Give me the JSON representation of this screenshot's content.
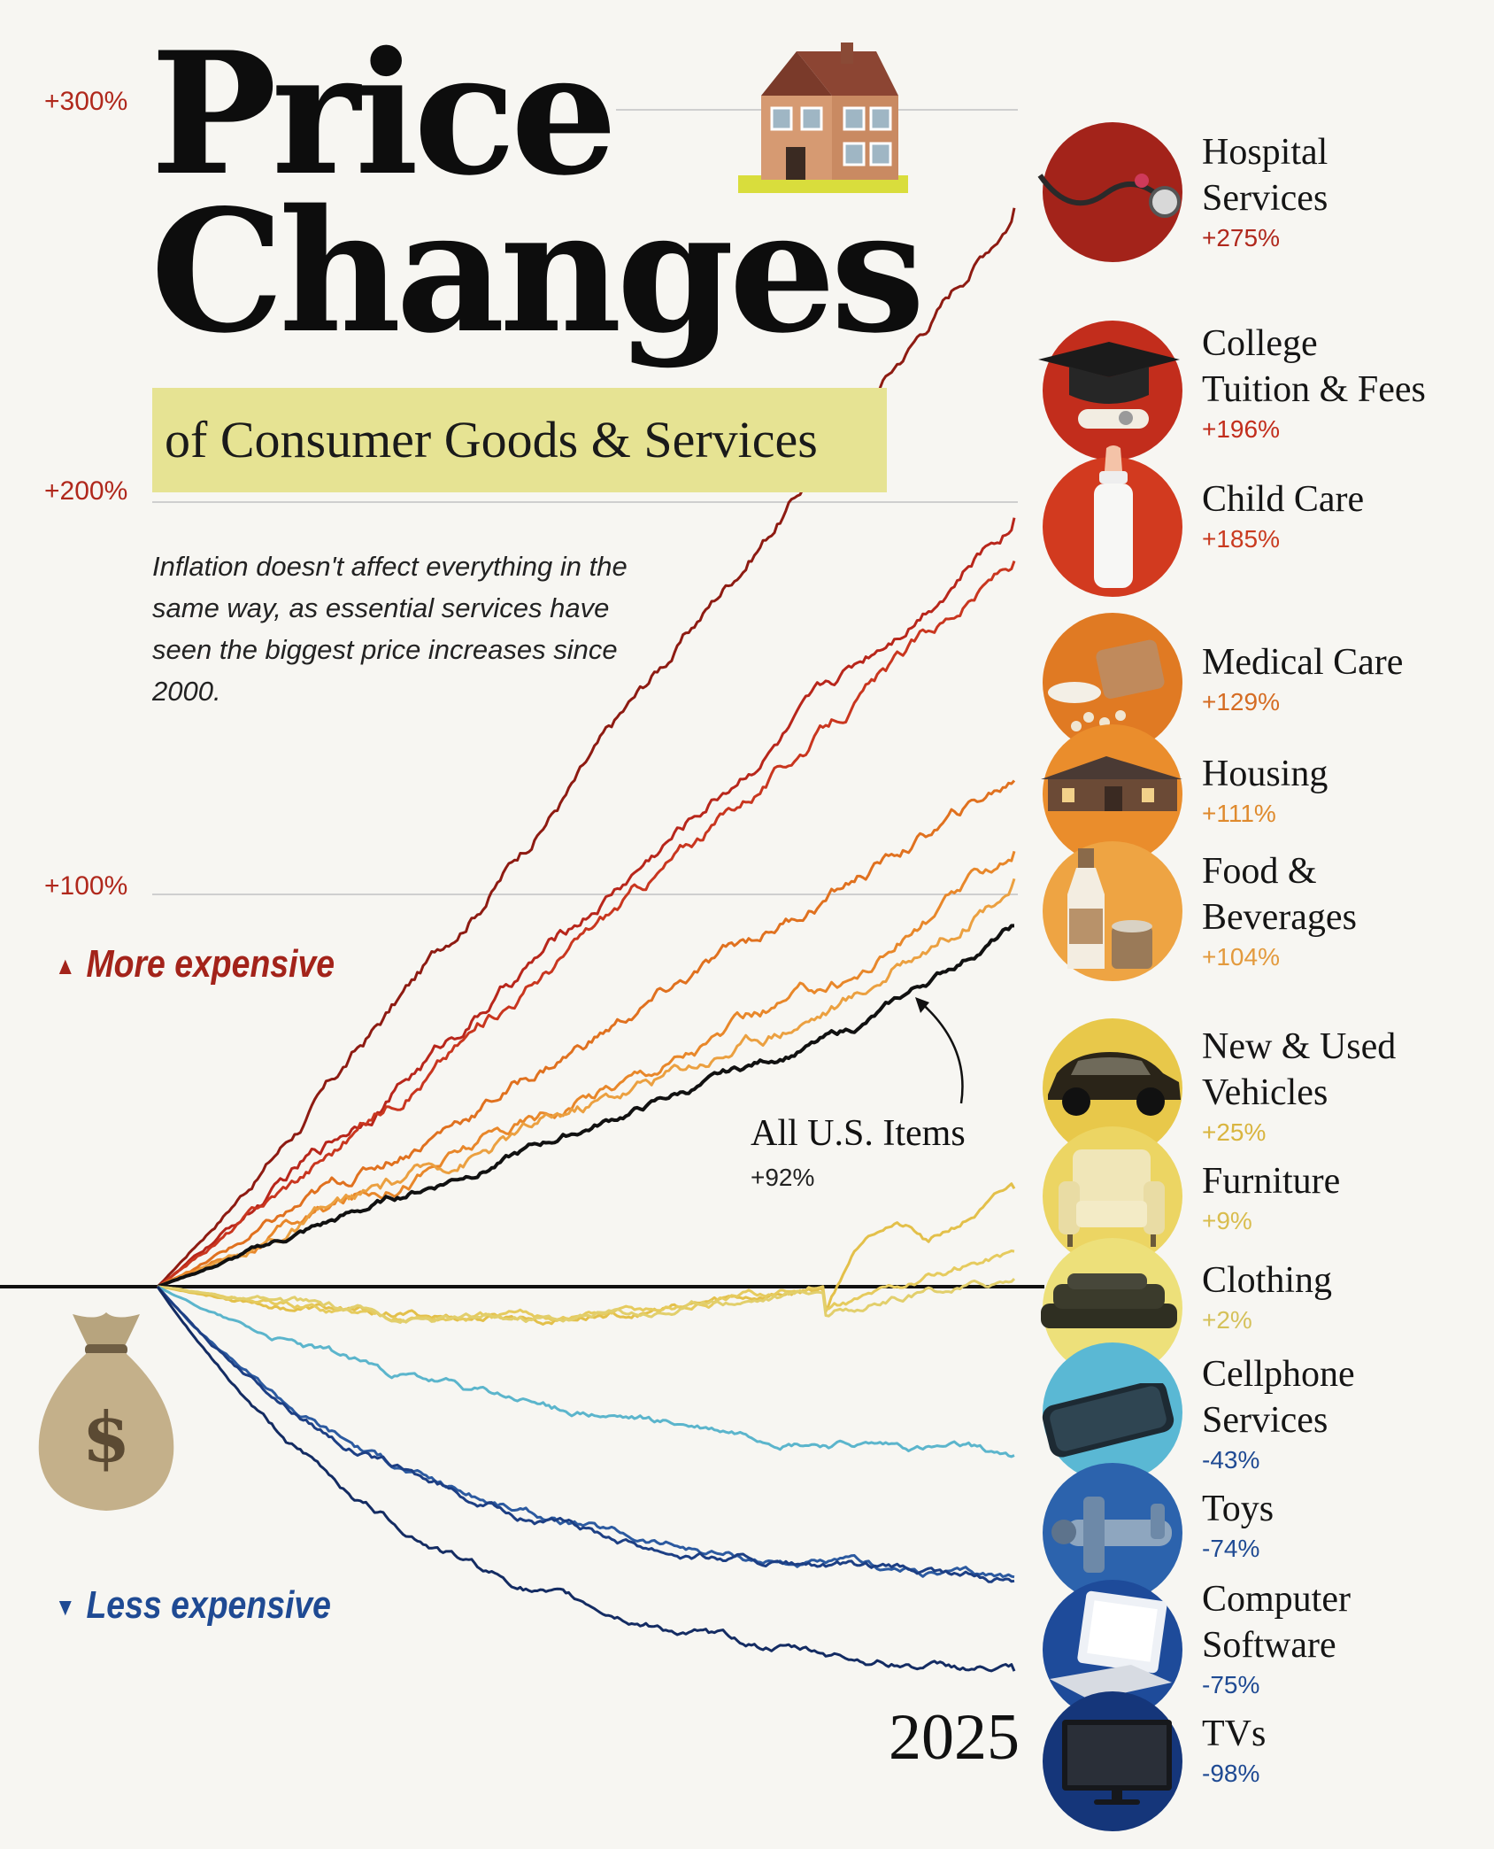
{
  "title_line1": "Price",
  "title_line2": "Changes",
  "subtitle": "of Consumer Goods & Services",
  "description": "Inflation doesn't affect everything in the same way, as essential services have seen the biggest price increases since 2000.",
  "more_expensive": "More expensive",
  "less_expensive": "Less expensive",
  "end_year": "2025",
  "all_items_label": "All U.S. Items",
  "all_items_pct": "+92%",
  "colors": {
    "more": "#a3231a",
    "less": "#1f4a93",
    "highlight": "#e6e393",
    "baseline": "#111111"
  },
  "chart_data": {
    "type": "line",
    "title": "Price Changes",
    "subtitle": "of Consumer Goods & Services",
    "ylabel": "",
    "y_ticks": [
      {
        "value": 300,
        "label": "+300%"
      },
      {
        "value": 200,
        "label": "+200%"
      },
      {
        "value": 100,
        "label": "+100%"
      }
    ],
    "x_end_label": "2025",
    "ylim": [
      -100,
      300
    ],
    "baseline": 0,
    "series": [
      {
        "name": "Hospital Services",
        "end": 275,
        "label": "+275%",
        "color": "#8e1b12",
        "icon": "stethoscope-icon",
        "circle": "#a3231a"
      },
      {
        "name": "College Tuition & Fees",
        "end": 196,
        "label": "+196%",
        "color": "#b8261b",
        "icon": "graduation-cap-icon",
        "circle": "#c22d1c"
      },
      {
        "name": "Child Care",
        "end": 185,
        "label": "+185%",
        "color": "#c9361f",
        "icon": "baby-bottle-icon",
        "circle": "#d23a1f"
      },
      {
        "name": "Medical Care",
        "end": 129,
        "label": "+129%",
        "color": "#e0711f",
        "icon": "pill-bottle-icon",
        "circle": "#e07a23"
      },
      {
        "name": "Housing",
        "end": 111,
        "label": "+111%",
        "color": "#e8872a",
        "icon": "house-icon",
        "circle": "#ea8d2c"
      },
      {
        "name": "Food & Beverages",
        "end": 104,
        "label": "+104%",
        "color": "#eba040",
        "icon": "milk-bottle-icon",
        "circle": "#eea443"
      },
      {
        "name": "All U.S. Items",
        "end": 92,
        "label": "+92%",
        "color": "#111111",
        "icon": "",
        "circle": ""
      },
      {
        "name": "New & Used Vehicles",
        "end": 25,
        "label": "+25%",
        "color": "#e3c04a",
        "icon": "car-icon",
        "circle": "#e8c84a"
      },
      {
        "name": "Furniture",
        "end": 9,
        "label": "+9%",
        "color": "#e6cb5e",
        "icon": "armchair-icon",
        "circle": "#ecd563"
      },
      {
        "name": "Clothing",
        "end": 2,
        "label": "+2%",
        "color": "#e2cf6c",
        "icon": "folded-clothes-icon",
        "circle": "#ede07a"
      },
      {
        "name": "Cellphone Services",
        "end": -43,
        "label": "-43%",
        "color": "#5bb5cc",
        "icon": "smartphone-icon",
        "circle": "#5ab8d4"
      },
      {
        "name": "Toys",
        "end": -74,
        "label": "-74%",
        "color": "#2c5aa0",
        "icon": "toy-plane-icon",
        "circle": "#2c63ad"
      },
      {
        "name": "Computer Software",
        "end": -75,
        "label": "-75%",
        "color": "#1d3f84",
        "icon": "laptop-icon",
        "circle": "#1e4b9a"
      },
      {
        "name": "TVs",
        "end": -98,
        "label": "-98%",
        "color": "#142c63",
        "icon": "tv-icon",
        "circle": "#15367a"
      }
    ]
  },
  "categories": [
    {
      "name_lines": [
        "Hospital",
        "Services"
      ],
      "pct": "+275%",
      "pct_color": "#b0281c"
    },
    {
      "name_lines": [
        "College",
        "Tuition & Fees"
      ],
      "pct": "+196%",
      "pct_color": "#c22d1c"
    },
    {
      "name_lines": [
        "Child Care"
      ],
      "pct": "+185%",
      "pct_color": "#c93a1f"
    },
    {
      "name_lines": [
        "Medical Care"
      ],
      "pct": "+129%",
      "pct_color": "#d56c23"
    },
    {
      "name_lines": [
        "Housing"
      ],
      "pct": "+111%",
      "pct_color": "#df8a2d"
    },
    {
      "name_lines": [
        "Food &",
        "Beverages"
      ],
      "pct": "+104%",
      "pct_color": "#e39a3d"
    },
    {
      "name_lines": [
        "New & Used",
        "Vehicles"
      ],
      "pct": "+25%",
      "pct_color": "#d9b53f"
    },
    {
      "name_lines": [
        "Furniture"
      ],
      "pct": "+9%",
      "pct_color": "#d9bd4e"
    },
    {
      "name_lines": [
        "Clothing"
      ],
      "pct": "+2%",
      "pct_color": "#d5c15a"
    },
    {
      "name_lines": [
        "Cellphone",
        "Services"
      ],
      "pct": "-43%",
      "pct_color": "#1f4a93"
    },
    {
      "name_lines": [
        "Toys"
      ],
      "pct": "-74%",
      "pct_color": "#1f4a93"
    },
    {
      "name_lines": [
        "Computer",
        "Software"
      ],
      "pct": "-75%",
      "pct_color": "#1f4a93"
    },
    {
      "name_lines": [
        "TVs"
      ],
      "pct": "-98%",
      "pct_color": "#1f4a93"
    }
  ]
}
